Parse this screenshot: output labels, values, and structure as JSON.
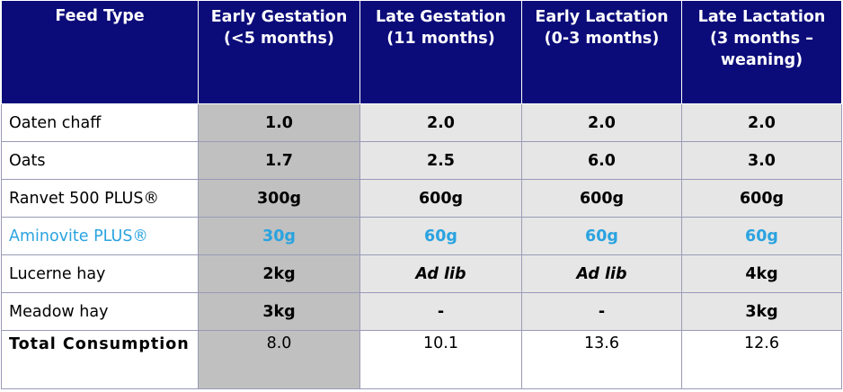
{
  "table": {
    "header": [
      "Feed Type",
      "Early Gestation (<5 months)",
      "Late Gestation (11 months)",
      "Early Lactation (0-3 months)",
      "Late Lactation (3 months – weaning)"
    ],
    "rows": [
      [
        "Oaten chaff",
        "1.0",
        "2.0",
        "2.0",
        "2.0"
      ],
      [
        "Oats",
        "1.7",
        "2.5",
        "6.0",
        "3.0"
      ],
      [
        "Ranvet 500 PLUS®",
        "300g",
        "600g",
        "600g",
        "600g"
      ],
      [
        "Aminovite PLUS®",
        "30g",
        "60g",
        "60g",
        "60g"
      ],
      [
        "Lucerne hay",
        "2kg",
        "Ad lib",
        "Ad lib",
        "4kg"
      ],
      [
        "Meadow hay",
        "3kg",
        "-",
        "-",
        "3kg"
      ],
      [
        "Total Consumption",
        "8.0",
        "10.1",
        "13.6",
        "12.6"
      ]
    ]
  }
}
